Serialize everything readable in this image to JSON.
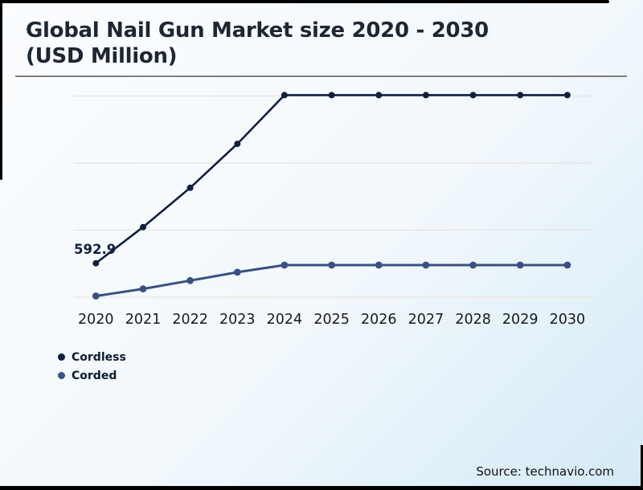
{
  "header": {
    "title_line1": "Global Nail Gun Market size 2020 - 2030",
    "title_line2": "(USD Million)"
  },
  "chart_data": {
    "type": "line",
    "title": "Global Nail Gun Market size 2020 - 2030 (USD Million)",
    "categories": [
      "2020",
      "2021",
      "2022",
      "2023",
      "2024",
      "2025",
      "2026",
      "2027",
      "2028",
      "2029",
      "2030"
    ],
    "series": [
      {
        "name": "Cordless",
        "color": "#101f3e",
        "values": [
          592.9,
          745,
          910,
          1095,
          1300,
          1300,
          1300,
          1300,
          1300,
          1300,
          1300
        ],
        "data_label": "592.9",
        "data_label_category": "2020"
      },
      {
        "name": "Corded",
        "color": "#3a5082",
        "values": [
          455,
          485,
          520,
          555,
          585,
          585,
          585,
          585,
          585,
          585,
          585
        ]
      }
    ],
    "values_estimated": true,
    "labeled_points": [
      {
        "series": "Cordless",
        "category": "2020",
        "label": "592.9"
      }
    ],
    "y_axis_visible": false,
    "grid": "horizontal",
    "gridline_count": 4,
    "legend_position": "bottom-left",
    "marker": "circle"
  },
  "footer": {
    "source": "Source: technavio.com"
  }
}
